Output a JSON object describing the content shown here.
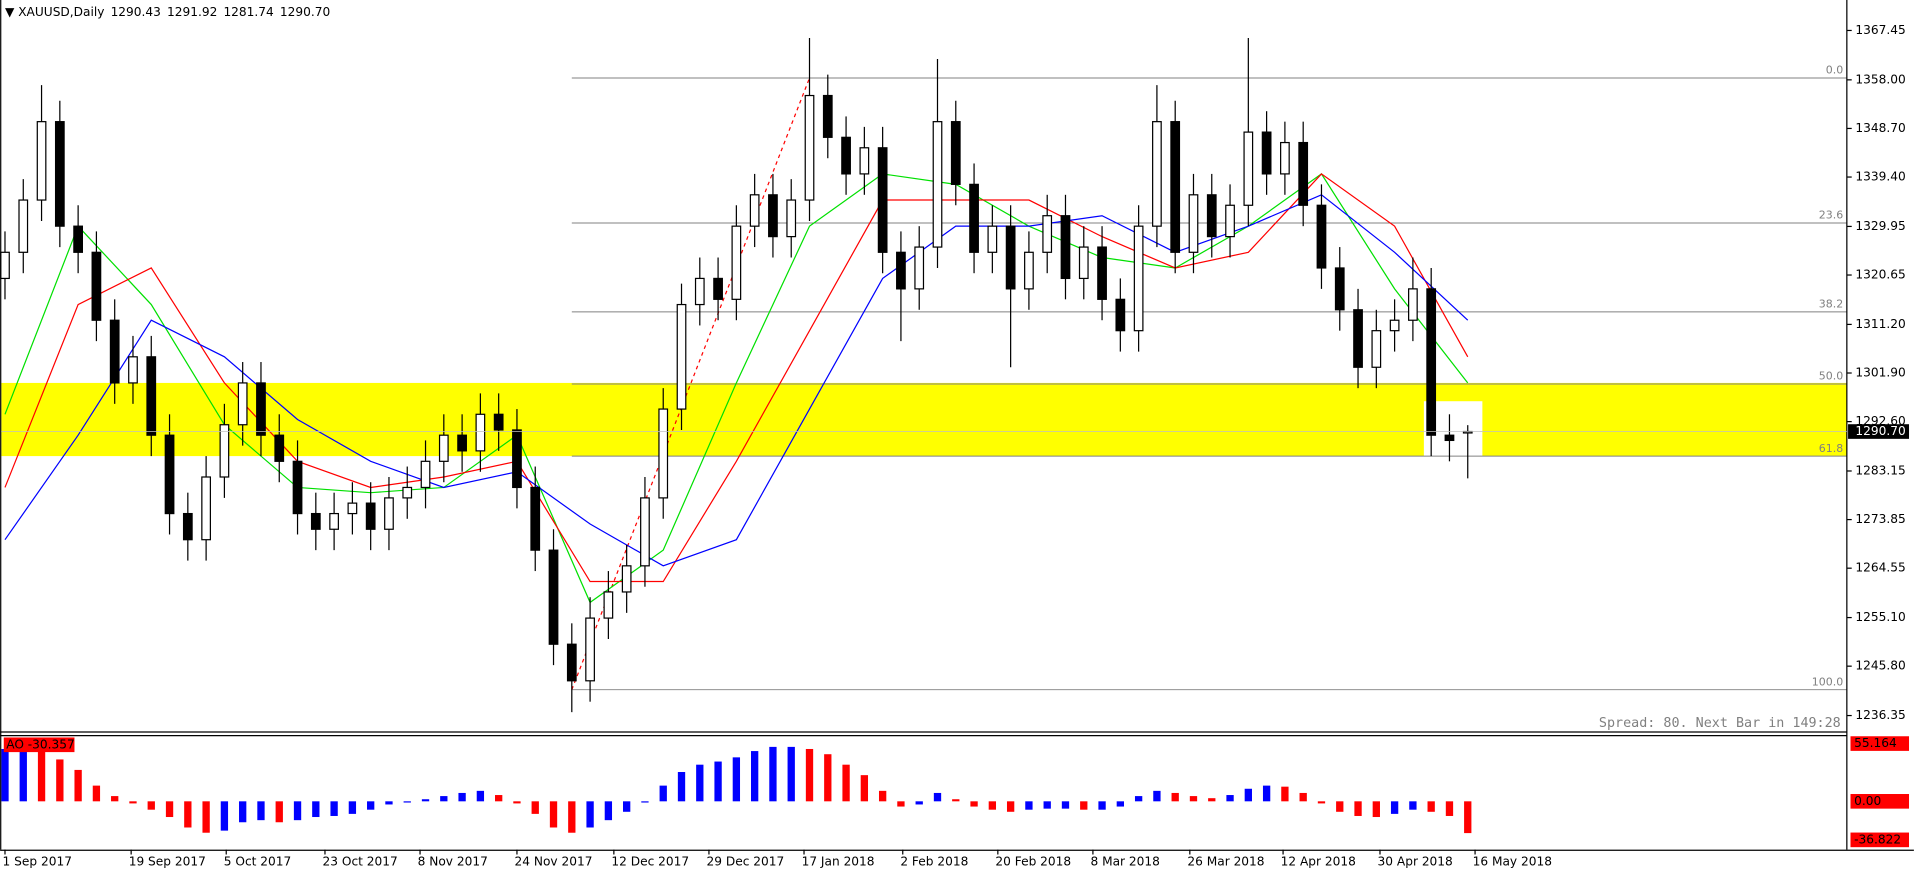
{
  "chart_data": [
    {
      "type": "candlestick",
      "symbol": "XAUUSD,Daily",
      "last_bar_labels": [
        "1290.43",
        "1291.92",
        "1281.74",
        "1290.70"
      ],
      "open": [
        1320,
        1325,
        1335,
        1350,
        1330,
        1325,
        1312,
        1300,
        1305,
        1290,
        1275,
        1270,
        1282,
        1292,
        1300,
        1290,
        1285,
        1275,
        1272,
        1275,
        1277,
        1272,
        1278,
        1280,
        1285,
        1290,
        1287,
        1294,
        1291,
        1280,
        1268,
        1250,
        1243,
        1255,
        1260,
        1265,
        1278,
        1295,
        1315,
        1320,
        1316,
        1330,
        1336,
        1328,
        1335,
        1355,
        1347,
        1340,
        1345,
        1325,
        1318,
        1326,
        1350,
        1338,
        1325,
        1330,
        1318,
        1325,
        1332,
        1320,
        1326,
        1316,
        1310,
        1330,
        1350,
        1325,
        1336,
        1328,
        1334,
        1348,
        1340,
        1346,
        1334,
        1322,
        1314,
        1303,
        1310,
        1312,
        1318,
        1290,
        1290.43
      ],
      "high": [
        1329,
        1339,
        1357,
        1354,
        1334,
        1329,
        1316,
        1309,
        1309,
        1294,
        1279,
        1286,
        1296,
        1304,
        1304,
        1294,
        1289,
        1279,
        1279,
        1281,
        1281,
        1282,
        1284,
        1289,
        1294,
        1294,
        1298,
        1298,
        1295,
        1284,
        1272,
        1254,
        1259,
        1264,
        1269,
        1282,
        1299,
        1319,
        1324,
        1324,
        1334,
        1340,
        1340,
        1339,
        1366,
        1359,
        1351,
        1349,
        1349,
        1329,
        1330,
        1362,
        1354,
        1342,
        1334,
        1334,
        1329,
        1336,
        1336,
        1330,
        1330,
        1320,
        1334,
        1357,
        1354,
        1340,
        1340,
        1338,
        1366,
        1352,
        1350,
        1350,
        1338,
        1326,
        1318,
        1314,
        1316,
        1324,
        1322,
        1294,
        1291.92
      ],
      "low": [
        1316,
        1321,
        1331,
        1326,
        1321,
        1308,
        1296,
        1296,
        1286,
        1271,
        1266,
        1266,
        1278,
        1288,
        1286,
        1281,
        1271,
        1268,
        1268,
        1271,
        1268,
        1268,
        1274,
        1276,
        1281,
        1283,
        1283,
        1287,
        1276,
        1264,
        1246,
        1237,
        1239,
        1251,
        1256,
        1261,
        1274,
        1291,
        1311,
        1312,
        1312,
        1326,
        1324,
        1324,
        1331,
        1343,
        1336,
        1336,
        1321,
        1308,
        1314,
        1322,
        1334,
        1321,
        1321,
        1303,
        1314,
        1321,
        1316,
        1316,
        1312,
        1306,
        1306,
        1326,
        1321,
        1321,
        1324,
        1324,
        1330,
        1336,
        1336,
        1330,
        1318,
        1310,
        1299,
        1299,
        1306,
        1308,
        1286,
        1285,
        1281.74
      ],
      "close": [
        1325,
        1335,
        1350,
        1330,
        1325,
        1312,
        1300,
        1305,
        1290,
        1275,
        1270,
        1282,
        1292,
        1300,
        1290,
        1285,
        1275,
        1272,
        1275,
        1277,
        1272,
        1278,
        1280,
        1285,
        1290,
        1287,
        1294,
        1291,
        1280,
        1268,
        1250,
        1243,
        1255,
        1260,
        1265,
        1278,
        1295,
        1315,
        1320,
        1316,
        1330,
        1336,
        1328,
        1335,
        1355,
        1347,
        1340,
        1345,
        1325,
        1318,
        1326,
        1350,
        1338,
        1325,
        1330,
        1318,
        1325,
        1332,
        1320,
        1326,
        1316,
        1310,
        1330,
        1350,
        1325,
        1336,
        1328,
        1334,
        1348,
        1340,
        1346,
        1334,
        1322,
        1314,
        1303,
        1310,
        1312,
        1318,
        1290,
        1289,
        1290.7
      ],
      "up_color": "#ffffff",
      "down_color": "#000000",
      "ylim": [
        1233.32,
        1373.28
      ],
      "yticks": [
        1367.45,
        {
          "value": 1358,
          "label": "1358.00"
        },
        {
          "value": 1348.7,
          "label": "1348.70"
        },
        {
          "value": 1339.4,
          "label": "1339.40"
        },
        1329.95,
        1320.65,
        {
          "value": 1311.2,
          "label": "1311.20"
        },
        {
          "value": 1301.9,
          "label": "1301.90"
        },
        {
          "value": 1292.6,
          "label": "1292.60"
        },
        1283.15,
        1273.85,
        1264.55,
        {
          "value": 1255.1,
          "label": "1255.10"
        },
        {
          "value": 1245.8,
          "label": "1245.80"
        },
        1236.35
      ],
      "xticks": [
        {
          "value": 0,
          "label": "1 Sep 2017"
        },
        {
          "value": 6.9,
          "label": "19 Sep 2017"
        },
        {
          "value": 12.1,
          "label": "5 Oct 2017"
        },
        {
          "value": 17.5,
          "label": "23 Oct 2017"
        },
        {
          "value": 22.7,
          "label": "8 Nov 2017"
        },
        {
          "value": 28,
          "label": "24 Nov 2017"
        },
        {
          "value": 33.3,
          "label": "12 Dec 2017"
        },
        {
          "value": 38.5,
          "label": "29 Dec 2017"
        },
        {
          "value": 43.7,
          "label": "17 Jan 2018"
        },
        {
          "value": 49.1,
          "label": "2 Feb 2018"
        },
        {
          "value": 54.3,
          "label": "20 Feb 2018"
        },
        {
          "value": 59.5,
          "label": "8 Mar 2018"
        },
        {
          "value": 64.8,
          "label": "26 Mar 2018"
        },
        {
          "value": 69.9,
          "label": "12 Apr 2018"
        },
        {
          "value": 75.2,
          "label": "30 Apr 2018"
        },
        {
          "value": 80.4,
          "label": "16 May 2018"
        }
      ],
      "moving_averages": [
        {
          "color": "#00e000",
          "x": [
            0,
            4,
            8,
            12,
            16,
            20,
            24,
            28,
            32,
            36,
            40,
            44,
            48,
            52,
            56,
            60,
            64,
            68,
            72,
            76,
            80
          ],
          "values": [
            1294,
            1330,
            1315,
            1292,
            1280,
            1279,
            1280,
            1290,
            1258,
            1268,
            1300,
            1330,
            1340,
            1338,
            1330,
            1324,
            1322,
            1330,
            1340,
            1318,
            1300
          ]
        },
        {
          "color": "#ff0000",
          "x": [
            0,
            4,
            8,
            12,
            16,
            20,
            24,
            28,
            32,
            36,
            40,
            44,
            48,
            52,
            56,
            60,
            64,
            68,
            72,
            76,
            80
          ],
          "values": [
            1280,
            1315,
            1322,
            1300,
            1285,
            1280,
            1282,
            1285,
            1262,
            1262,
            1285,
            1310,
            1335,
            1335,
            1335,
            1328,
            1322,
            1325,
            1340,
            1330,
            1305
          ]
        },
        {
          "color": "#0000ff",
          "x": [
            0,
            4,
            8,
            12,
            16,
            20,
            24,
            28,
            32,
            36,
            40,
            44,
            48,
            52,
            56,
            60,
            64,
            68,
            72,
            76,
            80
          ],
          "values": [
            1270,
            1290,
            1312,
            1305,
            1293,
            1285,
            1280,
            1283,
            1273,
            1265,
            1270,
            1295,
            1320,
            1330,
            1330,
            1332,
            1325,
            1330,
            1336,
            1325,
            1312
          ]
        }
      ],
      "fibonacci": [
        {
          "label": "0.0",
          "value": 1358.35
        },
        {
          "label": "23.6",
          "value": 1330.6
        },
        {
          "label": "38.2",
          "value": 1313.6
        },
        {
          "label": "50.0",
          "value": 1299.8
        },
        {
          "label": "61.8",
          "value": 1286
        },
        {
          "label": "100.0",
          "value": 1241.3
        }
      ],
      "zone": {
        "range": [
          1286,
          1300
        ],
        "color": "#ffff00"
      },
      "status": "Spread: 80. Next Bar in 149:28"
    },
    {
      "type": "bar",
      "label": "AO -30.357",
      "values": [
        50,
        50,
        48,
        40,
        30,
        15,
        5,
        -2,
        -8,
        -15,
        -25,
        -30,
        -28,
        -20,
        -18,
        -20,
        -18,
        -15,
        -14,
        -12,
        -8,
        -3,
        -1,
        2,
        5,
        8,
        10,
        6,
        -2,
        -12,
        -25,
        -30,
        -25,
        -18,
        -10,
        0,
        15,
        28,
        35,
        38,
        42,
        48,
        52,
        52,
        50,
        45,
        35,
        25,
        10,
        -5,
        -3,
        8,
        2,
        -5,
        -8,
        -10,
        -8,
        -7,
        -7,
        -8,
        -8,
        -5,
        5,
        10,
        8,
        5,
        3,
        6,
        12,
        15,
        14,
        8,
        -2,
        -10,
        -14,
        -15,
        -12,
        -8,
        -10,
        -14,
        -30.357
      ],
      "up_color": "#0000ff",
      "down_color": "#ff0000",
      "ylim": [
        -46.14,
        63.32
      ],
      "yticks": [
        55.164,
        {
          "value": 0,
          "label": "0.00"
        },
        -36.822
      ]
    }
  ]
}
